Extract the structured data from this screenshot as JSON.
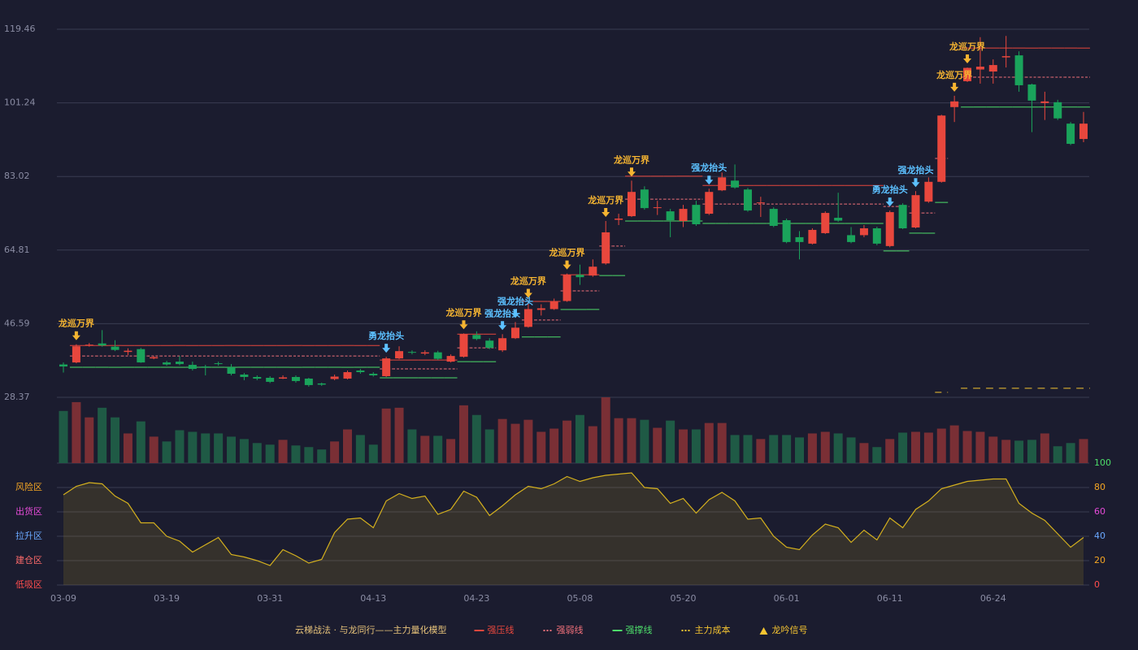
{
  "chart_data": [
    {
      "type": "candlestick",
      "ylim": [
        28.37,
        119.46
      ],
      "yticks": [
        28.37,
        46.59,
        64.81,
        83.02,
        101.24,
        119.46
      ],
      "grid": true,
      "up_color": "#e8473d",
      "down_color": "#1aa35b",
      "open": [
        36.5,
        37.0,
        41.2,
        41.7,
        40.9,
        39.6,
        40.3,
        38.0,
        37.0,
        37.2,
        36.4,
        36.0,
        36.8,
        35.8,
        34.0,
        33.4,
        33.2,
        33.0,
        33.4,
        33.0,
        31.8,
        32.9,
        33.0,
        35.0,
        34.2,
        33.6,
        38.0,
        39.6,
        39.2,
        39.5,
        37.2,
        38.4,
        43.8,
        42.4,
        40.0,
        43.0,
        45.8,
        50.0,
        50.2,
        52.2,
        58.7,
        58.5,
        61.5,
        72.3,
        73.2,
        79.8,
        75.2,
        74.4,
        72.0,
        76.0,
        73.8,
        79.6,
        82.0,
        79.8,
        76.4,
        75.0,
        72.2,
        68.0,
        66.4,
        69.0,
        72.8,
        68.5,
        68.5,
        70.2,
        65.8,
        76.0,
        70.4,
        76.8,
        81.7,
        100.2,
        106.6,
        109.5,
        109.0,
        112.5,
        113.0,
        105.8,
        101.2,
        101.4,
        96.1,
        92.3
      ],
      "close": [
        36.0,
        41.0,
        41.4,
        41.2,
        40.1,
        39.9,
        37.0,
        38.3,
        36.5,
        36.6,
        35.4,
        35.8,
        36.6,
        34.2,
        33.4,
        33.0,
        32.2,
        33.3,
        32.4,
        31.4,
        31.5,
        33.5,
        34.6,
        34.6,
        33.8,
        38.0,
        39.8,
        39.4,
        39.5,
        37.9,
        38.6,
        44.0,
        42.8,
        40.6,
        43.0,
        45.6,
        50.2,
        50.4,
        52.2,
        58.7,
        58.1,
        60.7,
        69.2,
        72.6,
        79.2,
        75.2,
        75.4,
        72.2,
        75.0,
        71.2,
        79.2,
        82.8,
        80.3,
        74.6,
        76.6,
        70.8,
        66.8,
        66.8,
        69.8,
        74.0,
        72.1,
        66.8,
        70.2,
        66.4,
        74.2,
        70.2,
        78.4,
        81.7,
        98.1,
        101.6,
        109.9,
        110.2,
        110.6,
        112.8,
        105.6,
        101.8,
        101.6,
        97.4,
        91.1,
        96.1
      ],
      "high": [
        37.0,
        41.5,
        41.8,
        45.0,
        42.5,
        40.5,
        40.6,
        38.6,
        37.4,
        38.6,
        37.2,
        36.4,
        37.2,
        36.6,
        34.4,
        33.8,
        33.6,
        33.8,
        33.8,
        33.2,
        32.0,
        34.0,
        35.0,
        35.4,
        34.6,
        38.4,
        41.0,
        40.0,
        40.0,
        39.9,
        39.0,
        44.2,
        44.7,
        43.0,
        44.0,
        47.0,
        52.0,
        51.4,
        52.8,
        59.0,
        61.2,
        62.5,
        72.0,
        73.8,
        82.0,
        80.6,
        77.0,
        75.0,
        76.0,
        77.0,
        80.0,
        84.0,
        86.0,
        80.2,
        78.0,
        75.4,
        72.6,
        69.5,
        70.2,
        74.4,
        79.0,
        70.5,
        71.0,
        70.6,
        74.6,
        76.4,
        79.4,
        82.8,
        98.3,
        103.0,
        110.0,
        117.5,
        112.0,
        117.8,
        114.0,
        106.0,
        104.0,
        102.0,
        96.5,
        99.0
      ],
      "low": [
        34.5,
        36.8,
        40.9,
        40.9,
        39.8,
        38.8,
        36.9,
        37.8,
        36.2,
        36.3,
        35.0,
        33.8,
        36.2,
        33.8,
        32.6,
        32.6,
        31.9,
        32.9,
        32.0,
        31.0,
        31.2,
        32.6,
        32.8,
        34.2,
        33.5,
        33.4,
        37.8,
        39.0,
        38.8,
        37.6,
        37.0,
        38.2,
        42.5,
        40.3,
        39.6,
        42.8,
        45.6,
        48.6,
        50.0,
        52.0,
        56.2,
        58.2,
        61.2,
        71.0,
        73.0,
        74.8,
        73.5,
        68.0,
        70.5,
        70.8,
        73.5,
        79.4,
        80.0,
        74.3,
        73.0,
        70.5,
        66.5,
        62.5,
        66.2,
        68.8,
        71.8,
        66.5,
        68.0,
        66.0,
        65.5,
        70.0,
        70.2,
        76.5,
        81.5,
        96.5,
        106.4,
        106.0,
        106.0,
        110.0,
        104.0,
        94.0,
        97.0,
        97.0,
        90.8,
        91.5
      ],
      "series": [
        {
          "name": "强压线",
          "color": "#e8473d",
          "dash": null,
          "values": [
            null,
            41.2,
            41.2,
            41.2,
            41.2,
            41.2,
            41.2,
            41.2,
            41.2,
            41.2,
            41.2,
            41.2,
            41.2,
            41.2,
            41.2,
            41.2,
            41.2,
            41.2,
            41.2,
            41.2,
            41.2,
            41.2,
            41.2,
            41.2,
            41.2,
            37.6,
            37.6,
            37.6,
            37.6,
            37.6,
            37.6,
            44.0,
            44.0,
            44.0,
            null,
            null,
            52.1,
            52.1,
            52.1,
            58.7,
            58.7,
            58.7,
            null,
            null,
            83.1,
            83.1,
            83.1,
            83.1,
            83.1,
            83.1,
            80.8,
            80.8,
            80.8,
            80.8,
            80.8,
            80.8,
            80.8,
            80.8,
            80.8,
            80.8,
            80.8,
            80.8,
            80.8,
            80.8,
            null,
            null,
            null,
            null,
            null,
            null,
            114.8,
            114.8,
            114.8,
            114.8,
            114.8,
            114.8,
            114.8,
            114.8,
            114.8,
            114.8
          ]
        },
        {
          "name": "强弱线",
          "color": "#f0707a",
          "dash": "3,2",
          "values": [
            null,
            38.6,
            38.6,
            38.6,
            38.6,
            38.6,
            38.6,
            38.6,
            38.6,
            38.6,
            38.6,
            38.6,
            38.6,
            38.6,
            38.6,
            38.6,
            38.6,
            38.6,
            38.6,
            38.6,
            38.6,
            38.6,
            38.6,
            38.6,
            38.6,
            35.4,
            35.4,
            35.4,
            35.4,
            35.4,
            35.4,
            40.6,
            40.6,
            40.6,
            null,
            null,
            47.5,
            47.5,
            47.5,
            54.7,
            54.7,
            54.7,
            65.8,
            65.8,
            77.4,
            77.4,
            77.4,
            77.4,
            77.4,
            77.4,
            76.2,
            76.2,
            76.2,
            76.2,
            76.2,
            76.2,
            76.2,
            76.2,
            76.2,
            76.2,
            76.2,
            76.2,
            76.2,
            76.2,
            75.6,
            75.6,
            74.0,
            74.0,
            87.5,
            null,
            107.6,
            107.6,
            107.6,
            107.6,
            107.6,
            107.6,
            107.6,
            107.6,
            107.6,
            107.6
          ]
        },
        {
          "name": "强撑线",
          "color": "#4ddc6a",
          "dash": null,
          "values": [
            null,
            35.8,
            35.8,
            35.8,
            35.8,
            35.8,
            35.8,
            35.8,
            35.8,
            35.8,
            35.8,
            35.8,
            35.8,
            35.8,
            35.8,
            35.8,
            35.8,
            35.8,
            35.8,
            35.8,
            35.8,
            35.8,
            35.8,
            35.8,
            35.8,
            33.2,
            33.2,
            33.2,
            33.2,
            33.2,
            33.2,
            37.2,
            37.2,
            37.2,
            null,
            null,
            43.3,
            43.3,
            43.3,
            50.1,
            50.1,
            50.1,
            58.5,
            58.5,
            72.0,
            72.0,
            72.0,
            72.0,
            72.0,
            72.0,
            71.4,
            71.4,
            71.4,
            71.4,
            71.4,
            71.4,
            71.4,
            71.4,
            71.4,
            71.4,
            71.4,
            71.4,
            71.4,
            71.4,
            64.6,
            64.6,
            69.0,
            69.0,
            76.6,
            null,
            100.2,
            100.2,
            100.2,
            100.2,
            100.2,
            100.2,
            100.2,
            100.2,
            100.2,
            100.2
          ]
        },
        {
          "name": "主力成本",
          "color": "#f5c431",
          "dash": "8,7",
          "values": [
            null,
            null,
            null,
            null,
            null,
            null,
            null,
            null,
            null,
            null,
            null,
            null,
            null,
            null,
            null,
            null,
            null,
            null,
            null,
            null,
            null,
            null,
            null,
            null,
            null,
            null,
            null,
            null,
            null,
            null,
            null,
            null,
            null,
            null,
            null,
            null,
            null,
            null,
            null,
            null,
            null,
            null,
            null,
            null,
            null,
            null,
            null,
            null,
            null,
            null,
            null,
            null,
            null,
            null,
            null,
            null,
            null,
            null,
            null,
            null,
            null,
            null,
            null,
            null,
            null,
            null,
            null,
            null,
            29.6,
            null,
            30.6,
            30.6,
            30.6,
            30.6,
            30.6,
            30.6,
            30.6,
            30.6,
            30.6,
            30.6
          ]
        }
      ],
      "signal_name": "龙吟信号",
      "signal_color": "#f5c431",
      "signals": [
        null,
        {
          "label": "龙巡万界",
          "color": "#f5b431"
        },
        null,
        null,
        null,
        null,
        null,
        null,
        null,
        null,
        null,
        null,
        null,
        null,
        null,
        null,
        null,
        null,
        null,
        null,
        null,
        null,
        null,
        null,
        null,
        {
          "label": "勇龙抬头",
          "color": "#5cc0ff"
        },
        null,
        null,
        null,
        null,
        null,
        {
          "label": "龙巡万界",
          "color": "#f5b431"
        },
        null,
        null,
        {
          "label": "强龙抬头",
          "color": "#5cc0ff"
        },
        {
          "label": "强龙抬头",
          "color": "#5cc0ff"
        },
        {
          "label": "龙巡万界",
          "color": "#f5b431"
        },
        null,
        null,
        {
          "label": "龙巡万界",
          "color": "#f5b431"
        },
        null,
        null,
        {
          "label": "龙巡万界",
          "color": "#f5b431"
        },
        null,
        {
          "label": "龙巡万界",
          "color": "#f5b431"
        },
        null,
        null,
        null,
        null,
        null,
        {
          "label": "强龙抬头",
          "color": "#5cc0ff"
        },
        null,
        null,
        null,
        null,
        null,
        null,
        null,
        null,
        null,
        null,
        null,
        null,
        null,
        {
          "label": "勇龙抬头",
          "color": "#5cc0ff"
        },
        null,
        {
          "label": "强龙抬头",
          "color": "#5cc0ff"
        },
        null,
        null,
        {
          "label": "龙巡万界",
          "color": "#f5b431"
        },
        {
          "label": "龙巡万界",
          "color": "#f5b431"
        },
        null,
        null,
        null,
        null,
        null,
        null,
        null,
        null,
        null
      ],
      "legend_title": "云梯战法 · 与龙同行——主力量化模型"
    },
    {
      "type": "bar",
      "up_color": "#7a2f35",
      "down_color": "#1f5a45",
      "values": [
        65,
        76,
        57,
        69,
        57,
        37,
        52,
        33,
        27,
        41,
        39,
        37,
        37,
        33,
        30,
        25,
        23,
        29,
        22,
        20,
        17,
        27,
        42,
        35,
        23,
        68,
        69,
        42,
        34,
        34,
        30,
        72,
        60,
        42,
        55,
        49,
        54,
        39,
        43,
        53,
        60,
        46,
        82,
        56,
        56,
        54,
        44,
        53,
        42,
        42,
        50,
        50,
        35,
        35,
        30,
        35,
        35,
        32,
        37,
        39,
        37,
        32,
        25,
        20,
        30,
        38,
        39,
        38,
        43,
        47,
        40,
        39,
        33,
        29,
        28,
        29,
        37,
        21,
        25,
        30
      ]
    },
    {
      "type": "line",
      "color": "#d4b01e",
      "ylim": [
        0,
        100
      ],
      "yticks": [
        0,
        20,
        40,
        60,
        80,
        100
      ],
      "ytick_colors": [
        "#ff4d4d",
        "#f5a623",
        "#6aa8ff",
        "#e64bd9",
        "#f5a623",
        "#4ddc6a"
      ],
      "zones": [
        {
          "value": 80,
          "label": "风险区",
          "color": "#f5a623"
        },
        {
          "value": 60,
          "label": "出货区",
          "color": "#e64bd9"
        },
        {
          "value": 40,
          "label": "拉升区",
          "color": "#6aa8ff"
        },
        {
          "value": 20,
          "label": "建仓区",
          "color": "#ff6b6b"
        },
        {
          "value": 0,
          "label": "低吸区",
          "color": "#ff4d4d"
        }
      ],
      "categories": [
        "03-09",
        null,
        null,
        null,
        null,
        null,
        null,
        null,
        "03-19",
        null,
        null,
        null,
        null,
        null,
        null,
        null,
        "03-31",
        null,
        null,
        null,
        null,
        null,
        null,
        null,
        "04-13",
        null,
        null,
        null,
        null,
        null,
        null,
        null,
        "04-23",
        null,
        null,
        null,
        null,
        null,
        null,
        null,
        "05-08",
        null,
        null,
        null,
        null,
        null,
        null,
        null,
        "05-20",
        null,
        null,
        null,
        null,
        null,
        null,
        null,
        "06-01",
        null,
        null,
        null,
        null,
        null,
        null,
        null,
        "06-11",
        null,
        null,
        null,
        null,
        null,
        null,
        null,
        "06-24",
        null,
        null,
        null,
        null,
        null,
        null,
        null
      ],
      "values": [
        74,
        81,
        84,
        83,
        73,
        67,
        51,
        51,
        40,
        36,
        27,
        33,
        39,
        25,
        23,
        20,
        16,
        29,
        24,
        18,
        21,
        43,
        54,
        55,
        47,
        69,
        75,
        71,
        73,
        58,
        62,
        77,
        72,
        57,
        65,
        74,
        81,
        79,
        83,
        89,
        85,
        88,
        90,
        91,
        92,
        80,
        79,
        67,
        71,
        59,
        70,
        76,
        69,
        54,
        55,
        40,
        31,
        29,
        41,
        50,
        47,
        35,
        45,
        37,
        55,
        47,
        62,
        69,
        79,
        82,
        85,
        86,
        87,
        87,
        67,
        59,
        53,
        42,
        31,
        39
      ]
    }
  ]
}
